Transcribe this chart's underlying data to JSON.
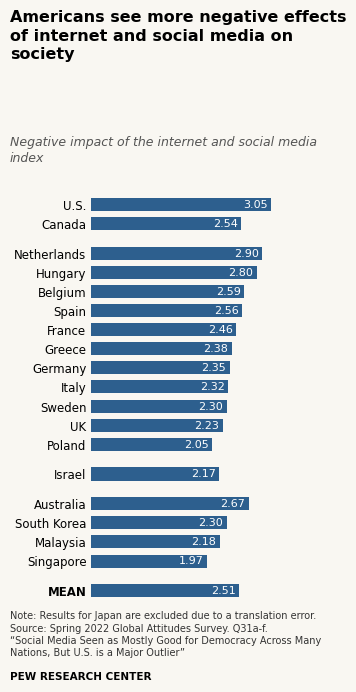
{
  "title": "Americans see more negative effects\nof internet and social media on\nsociety",
  "subtitle": "Negative impact of the internet and social media\nindex",
  "categories": [
    "U.S.",
    "Canada",
    null,
    "Netherlands",
    "Hungary",
    "Belgium",
    "Spain",
    "France",
    "Greece",
    "Germany",
    "Italy",
    "Sweden",
    "UK",
    "Poland",
    null,
    "Israel",
    null,
    "Australia",
    "South Korea",
    "Malaysia",
    "Singapore",
    null,
    "MEAN"
  ],
  "values": [
    3.05,
    2.54,
    null,
    2.9,
    2.8,
    2.59,
    2.56,
    2.46,
    2.38,
    2.35,
    2.32,
    2.3,
    2.23,
    2.05,
    null,
    2.17,
    null,
    2.67,
    2.3,
    2.18,
    1.97,
    null,
    2.51
  ],
  "bar_color": "#2d5f8e",
  "text_color_inside": "#ffffff",
  "background_color": "#f9f7f2",
  "note": "Note: Results for Japan are excluded due to a translation error.\nSource: Spring 2022 Global Attitudes Survey. Q31a-f.\n“Social Media Seen as Mostly Good for Democracy Across Many\nNations, But U.S. is a Major Outlier”",
  "footer": "PEW RESEARCH CENTER",
  "xlim": [
    0,
    3.4
  ],
  "title_fontsize": 11.5,
  "subtitle_fontsize": 9,
  "label_fontsize": 8.5,
  "value_fontsize": 8,
  "note_fontsize": 7
}
